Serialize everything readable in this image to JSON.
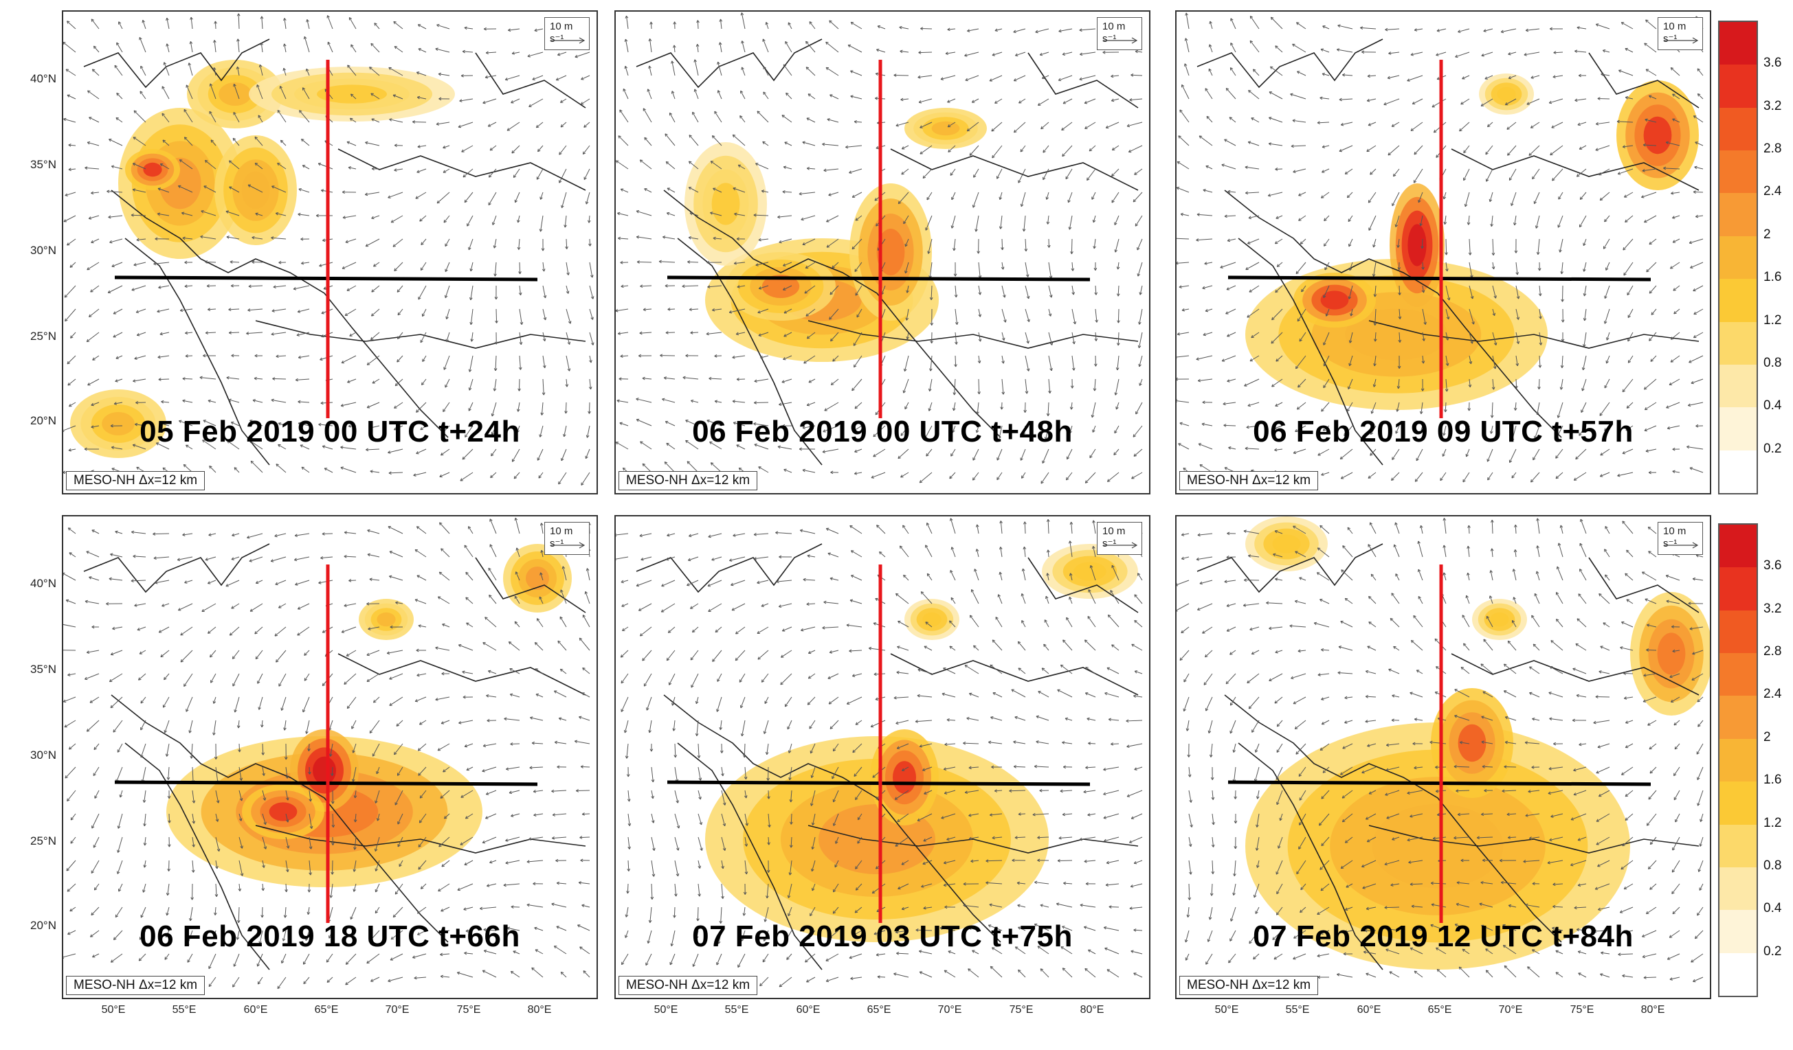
{
  "figure": {
    "model_label": "MESO-NH Δx=12 km",
    "reference_vector": {
      "label": "10 m s⁻¹"
    },
    "lat_labels": [
      "40°N",
      "35°N",
      "30°N",
      "25°N",
      "20°N"
    ],
    "lon_labels": [
      "50°E",
      "55°E",
      "60°E",
      "65°E",
      "70°E",
      "75°E",
      "80°E"
    ],
    "colorbar": {
      "levels": [
        "3.6",
        "3.2",
        "2.8",
        "2.4",
        "2",
        "1.6",
        "1.2",
        "0.8",
        "0.4",
        "0.2"
      ],
      "colors": [
        "#d7191c",
        "#e8331f",
        "#f05a22",
        "#f47a2a",
        "#f79a35",
        "#f8b535",
        "#fbc935",
        "#fcd96a",
        "#fde8a8",
        "#fef4d8",
        "#ffffff"
      ]
    },
    "colors": {
      "cross_section_lon": "#e8161b",
      "cross_section_lat": "#000000",
      "wind_vectors": "#555555",
      "coastline": "#222222"
    },
    "panels": [
      {
        "caption": "05 Feb 2019 00 UTC t+24h"
      },
      {
        "caption": "06 Feb 2019 00 UTC t+48h"
      },
      {
        "caption": "06 Feb 2019 09 UTC t+57h"
      },
      {
        "caption": "06 Feb 2019 18 UTC t+66h"
      },
      {
        "caption": "07 Feb 2019 03 UTC t+75h"
      },
      {
        "caption": "07 Feb 2019 12 UTC t+84h"
      }
    ]
  }
}
